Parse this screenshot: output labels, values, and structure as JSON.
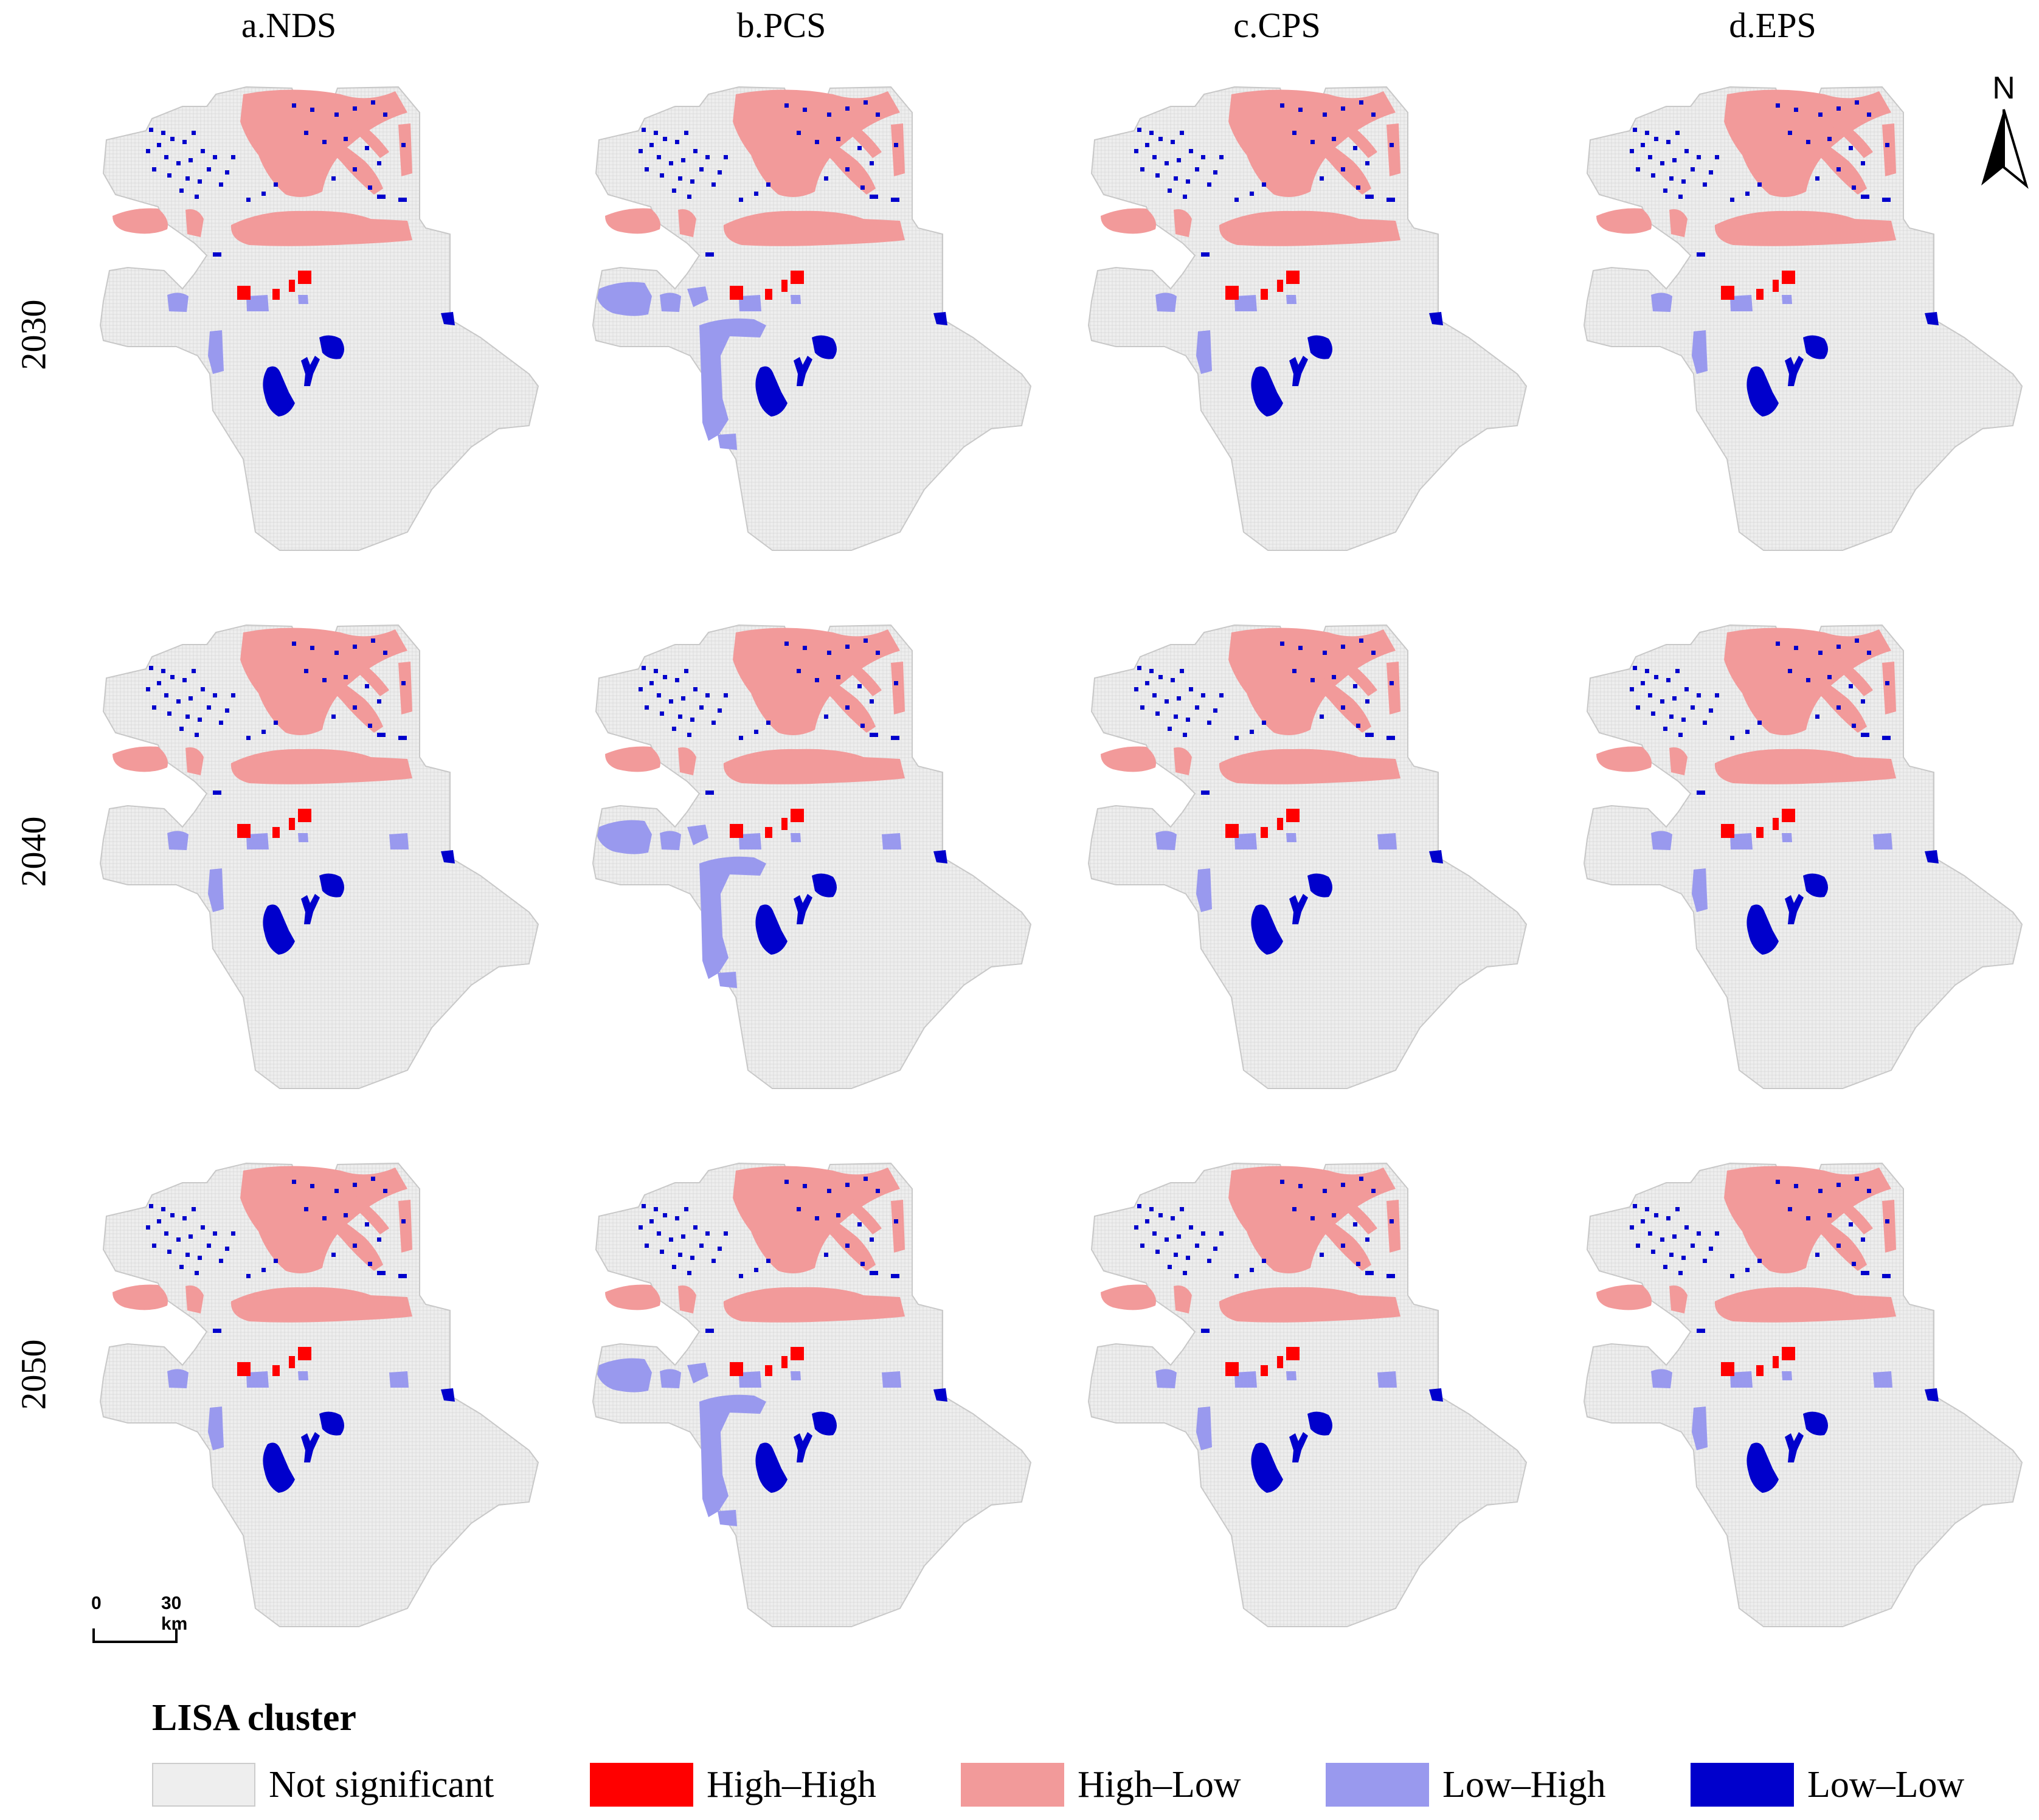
{
  "columns": [
    {
      "label": "a.NDS"
    },
    {
      "label": "b.PCS"
    },
    {
      "label": "c.CPS"
    },
    {
      "label": "d.EPS"
    }
  ],
  "rows": [
    {
      "label": "2030"
    },
    {
      "label": "2040"
    },
    {
      "label": "2050"
    }
  ],
  "north_arrow": {
    "label": "N",
    "icon": "north-arrow-icon"
  },
  "scale_bar": {
    "start": "0",
    "end": "30 km"
  },
  "legend": {
    "title": "LISA cluster",
    "items": [
      {
        "label": "Not significant",
        "color": "#eeeeee",
        "key": "ns"
      },
      {
        "label": "High–High",
        "color": "#ff0000",
        "key": "hh"
      },
      {
        "label": "High–Low",
        "color": "#f29a9a",
        "key": "hl"
      },
      {
        "label": "Low–High",
        "color": "#9999ee",
        "key": "lh"
      },
      {
        "label": "Low–Low",
        "color": "#0000cc",
        "key": "ll"
      }
    ]
  }
}
